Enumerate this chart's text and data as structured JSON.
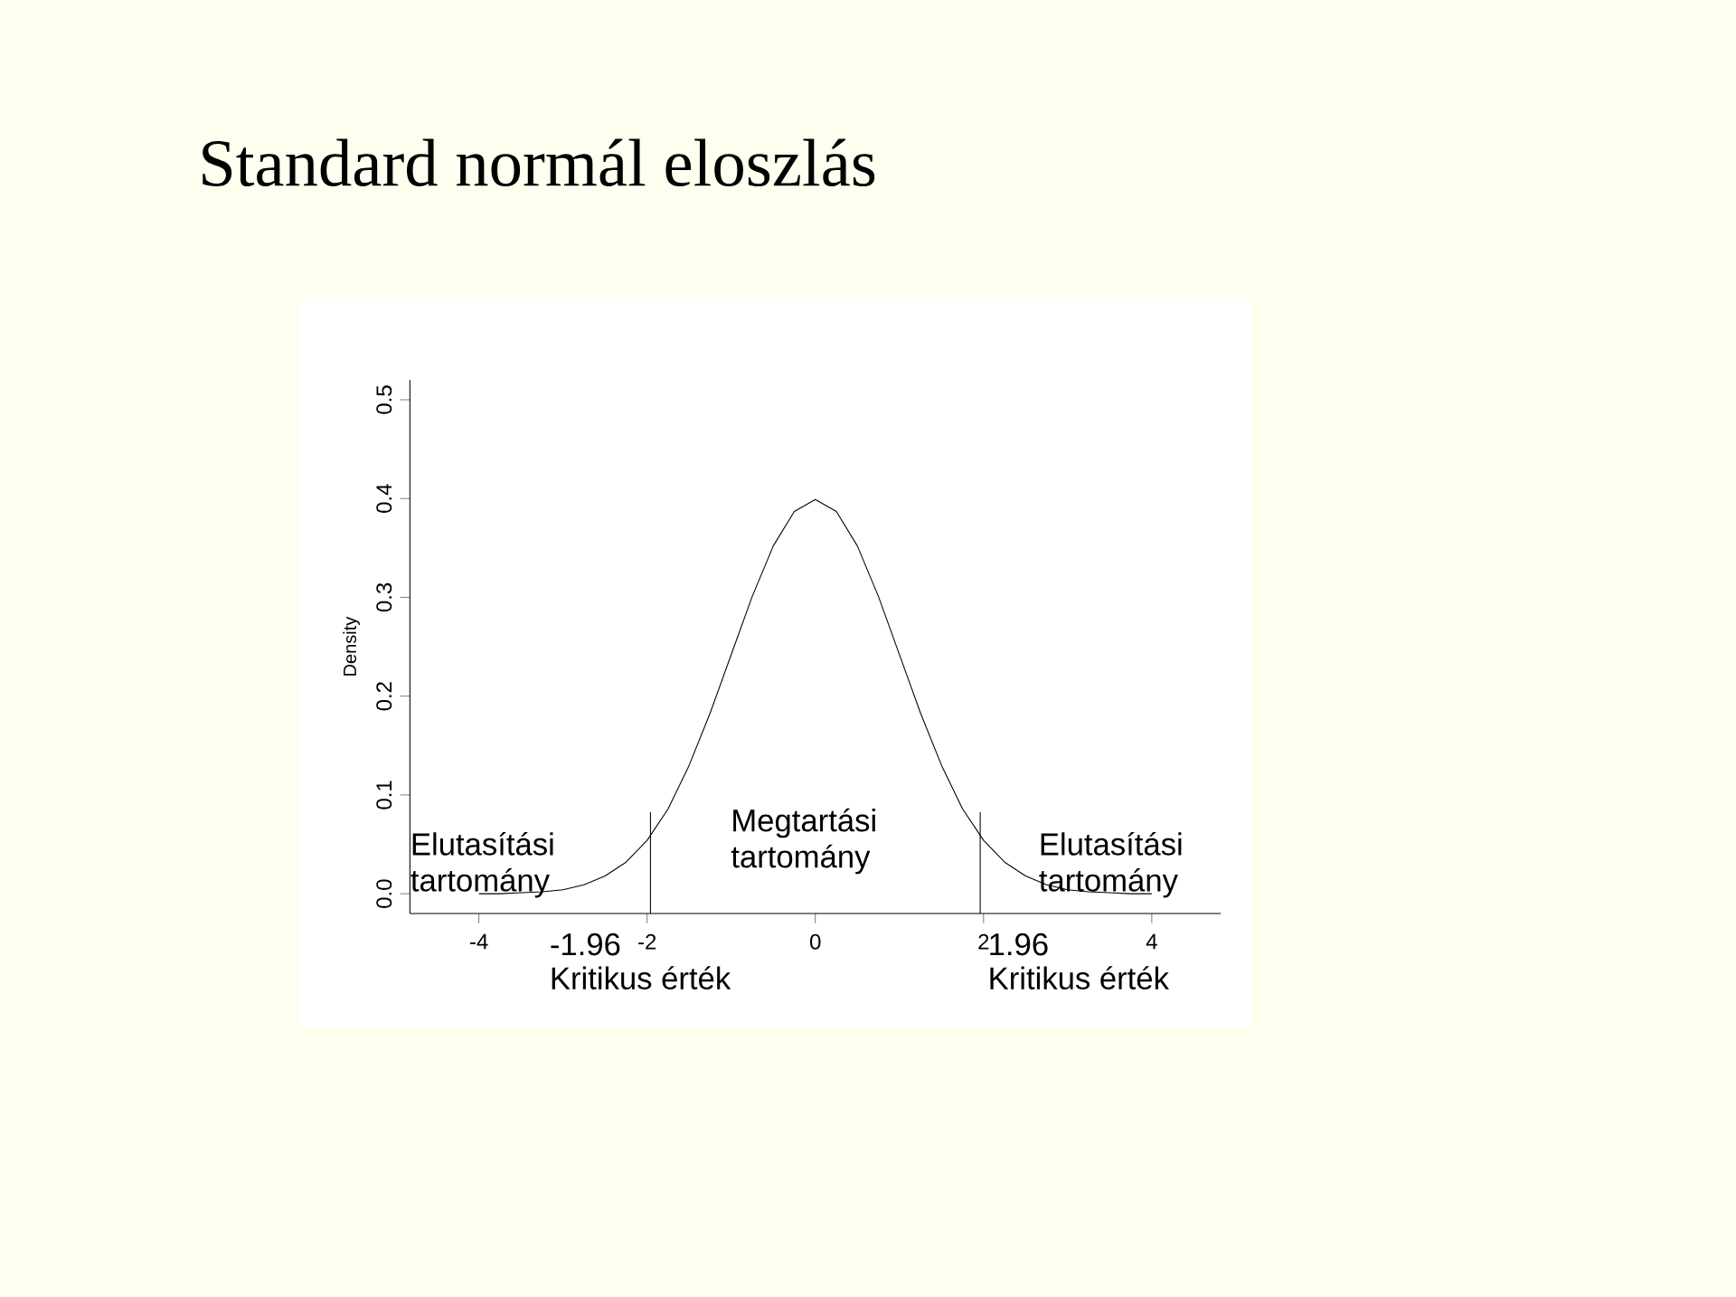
{
  "chart_data": {
    "type": "line",
    "title": "Standard normál eloszlás",
    "ylabel": "Density",
    "x": [
      -4,
      -3.75,
      -3.5,
      -3.25,
      -3,
      -2.75,
      -2.5,
      -2.25,
      -2,
      -1.75,
      -1.5,
      -1.25,
      -1,
      -0.75,
      -0.5,
      -0.25,
      0,
      0.25,
      0.5,
      0.75,
      1,
      1.25,
      1.5,
      1.75,
      2,
      2.25,
      2.5,
      2.75,
      3,
      3.25,
      3.5,
      3.75,
      4
    ],
    "series": [
      {
        "color": "#000000",
        "values": [
          0.0,
          0.0,
          0.001,
          0.002,
          0.004,
          0.009,
          0.018,
          0.032,
          0.054,
          0.086,
          0.13,
          0.183,
          0.242,
          0.301,
          0.352,
          0.387,
          0.399,
          0.387,
          0.352,
          0.301,
          0.242,
          0.183,
          0.13,
          0.086,
          0.054,
          0.032,
          0.018,
          0.009,
          0.004,
          0.002,
          0.001,
          0.0,
          0.0
        ]
      }
    ],
    "xlim": [
      -4.82,
      4.82
    ],
    "ylim": [
      -0.02,
      0.52
    ],
    "xticks": [
      -4,
      -2,
      0,
      2,
      4
    ],
    "yticks": [
      {
        "value": 0,
        "label": "0.0"
      },
      0.1,
      0.2,
      0.3,
      0.4,
      0.5
    ],
    "ref_lines": [
      {
        "axis": "x",
        "value": -1.96,
        "label": "-1.96"
      },
      {
        "axis": "x",
        "value": 1.96,
        "label": "1.96"
      }
    ],
    "annotations": [
      "Elutasítási tartomány",
      "Megtartási tartomány",
      "Elutasítási tartomány",
      "Kritikus érték",
      "Kritikus érték"
    ]
  }
}
